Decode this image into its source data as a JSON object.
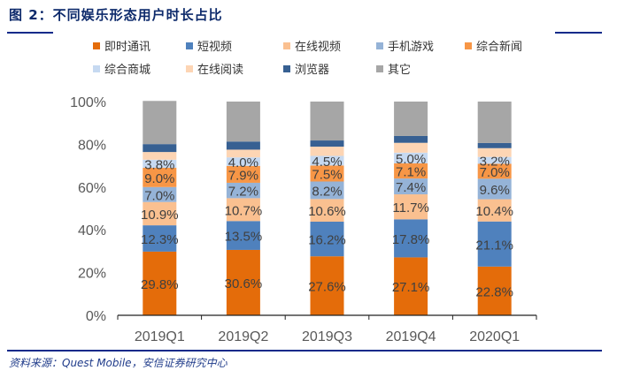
{
  "title": "图 2：不同娱乐形态用户时长占比",
  "source": "资料来源：Quest Mobile，安信证券研究中心",
  "chart_data": {
    "type": "bar",
    "stacked": true,
    "categories": [
      "2019Q1",
      "2019Q2",
      "2019Q3",
      "2019Q4",
      "2020Q1"
    ],
    "ylim": [
      0,
      100
    ],
    "yticks": [
      "0%",
      "20%",
      "40%",
      "60%",
      "80%",
      "100%"
    ],
    "legend_position": "top",
    "series": [
      {
        "name": "即时通讯",
        "color": "#E46C0A",
        "values": [
          29.8,
          30.6,
          27.6,
          27.1,
          22.8
        ],
        "labels": [
          "29.8%",
          "30.6%",
          "27.6%",
          "27.1%",
          "22.8%"
        ]
      },
      {
        "name": "短视频",
        "color": "#4F81BD",
        "values": [
          12.3,
          13.5,
          16.2,
          17.8,
          21.1
        ],
        "labels": [
          "12.3%",
          "13.5%",
          "16.2%",
          "17.8%",
          "21.1%"
        ]
      },
      {
        "name": "在线视频",
        "color": "#FAC090",
        "values": [
          10.9,
          10.7,
          10.6,
          11.7,
          10.4
        ],
        "labels": [
          "10.9%",
          "10.7%",
          "10.6%",
          "11.7%",
          "10.4%"
        ]
      },
      {
        "name": "手机游戏",
        "color": "#95B3D7",
        "values": [
          7.0,
          7.2,
          8.2,
          7.4,
          9.6
        ],
        "labels": [
          "7.0%",
          "7.2%",
          "8.2%",
          "7.4%",
          "9.6%"
        ]
      },
      {
        "name": "综合新闻",
        "color": "#F79646",
        "values": [
          9.0,
          7.9,
          7.5,
          7.1,
          7.0
        ],
        "labels": [
          "9.0%",
          "7.9%",
          "7.5%",
          "7.1%",
          "7.0%"
        ]
      },
      {
        "name": "综合商城",
        "color": "#C6D9F1",
        "values": [
          3.8,
          4.0,
          4.5,
          5.0,
          3.2
        ],
        "labels": [
          "3.8%",
          "4.0%",
          "4.5%",
          "5.0%",
          "3.2%"
        ]
      },
      {
        "name": "在线阅读",
        "color": "#FDD5B4",
        "values": [
          3.6,
          3.6,
          4.3,
          4.6,
          4.1
        ]
      },
      {
        "name": "浏览器",
        "color": "#376092",
        "values": [
          3.7,
          3.8,
          2.9,
          3.2,
          2.4
        ]
      },
      {
        "name": "其它",
        "color": "#A6A6A6",
        "values": [
          20.2,
          18.7,
          18.2,
          16.1,
          19.4
        ]
      }
    ]
  }
}
